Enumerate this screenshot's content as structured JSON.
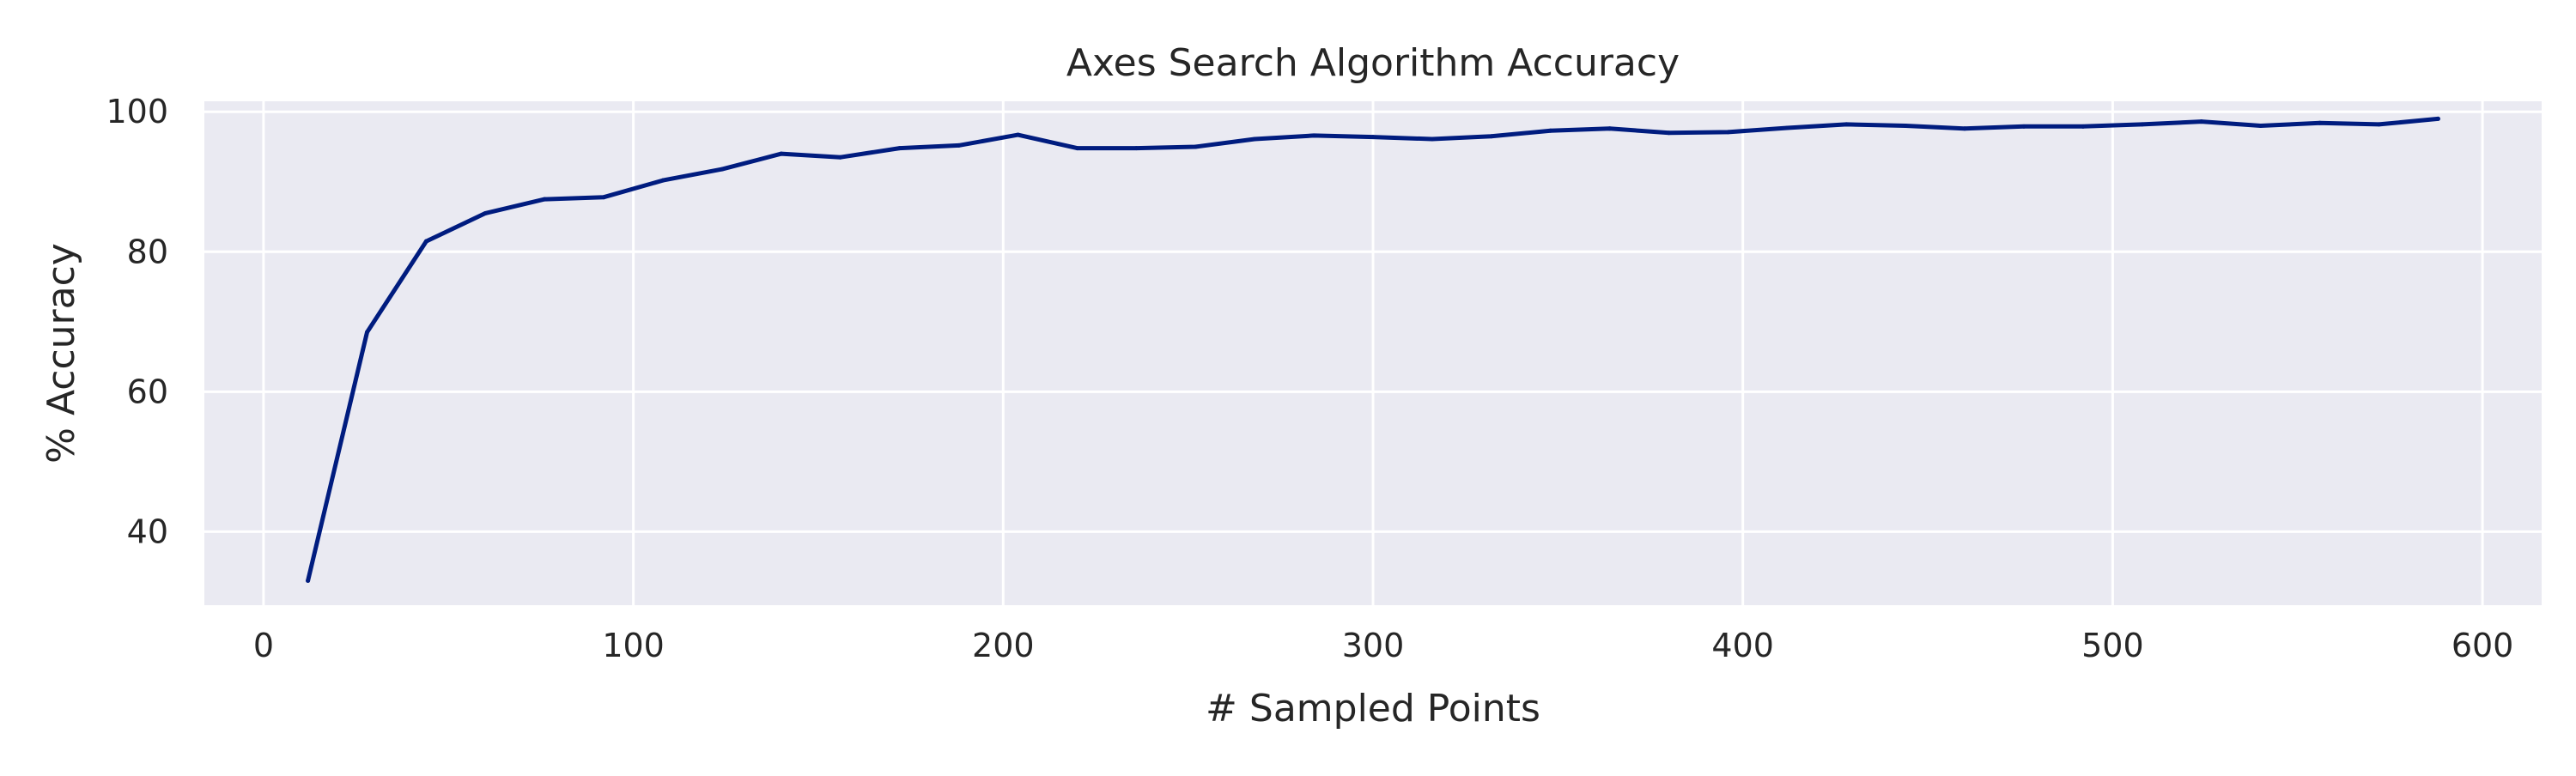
{
  "chart_data": {
    "type": "line",
    "title": "Axes Search Algorithm Accuracy",
    "xlabel": "# Sampled Points",
    "ylabel": "% Accuracy",
    "xlim": [
      -16,
      616
    ],
    "ylim": [
      29.5,
      101.5
    ],
    "xticks": [
      0,
      100,
      200,
      300,
      400,
      500,
      600
    ],
    "yticks": [
      40,
      60,
      80,
      100
    ],
    "grid": true,
    "legend": "none",
    "colors": {
      "line": "#001C7F",
      "plot_background": "#EAEAF2",
      "grid": "#FFFFFF",
      "text": "#262626"
    },
    "series": [
      {
        "x": [
          12,
          28,
          44,
          60,
          76,
          92,
          108,
          124,
          140,
          156,
          172,
          188,
          204,
          220,
          236,
          252,
          268,
          284,
          300,
          316,
          332,
          348,
          364,
          380,
          396,
          412,
          428,
          444,
          460,
          476,
          492,
          508,
          524,
          540,
          556,
          572,
          588
        ],
        "values": [
          33.0,
          68.5,
          81.5,
          85.5,
          87.5,
          87.8,
          90.2,
          91.8,
          94.0,
          93.5,
          94.8,
          95.2,
          96.7,
          94.8,
          94.8,
          95.0,
          96.1,
          96.6,
          96.4,
          96.1,
          96.5,
          97.3,
          97.6,
          97.0,
          97.1,
          97.7,
          98.2,
          98.0,
          97.6,
          97.9,
          97.9,
          98.2,
          98.6,
          98.0,
          98.4,
          98.2,
          99.0
        ]
      }
    ]
  }
}
